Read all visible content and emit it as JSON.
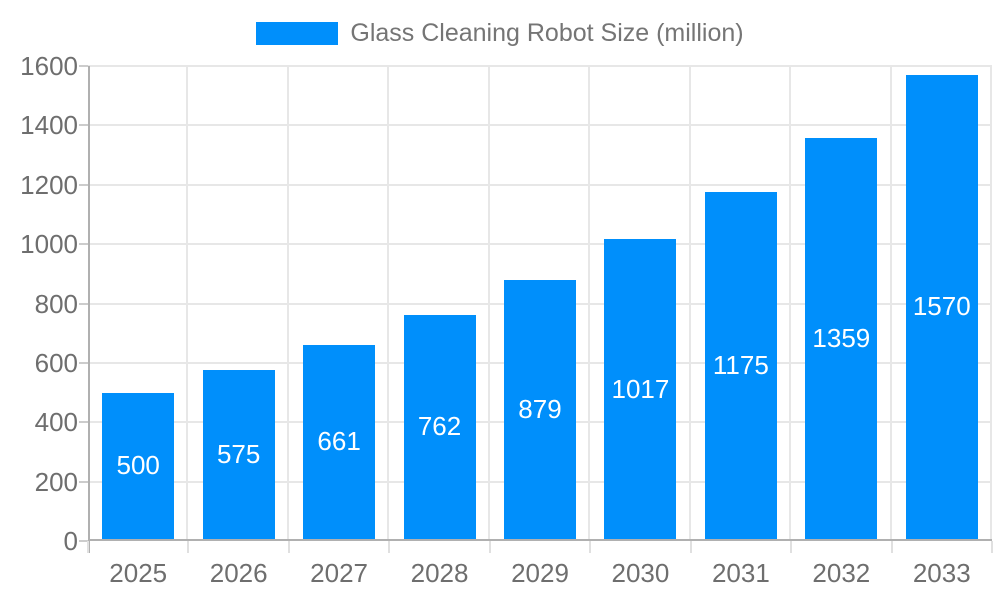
{
  "chart_data": {
    "type": "bar",
    "title": "Glass Cleaning Robot Size (million)",
    "legend_label": "Glass Cleaning Robot Size (million)",
    "legend_position": "top-center",
    "categories": [
      "2025",
      "2026",
      "2027",
      "2028",
      "2029",
      "2030",
      "2031",
      "2032",
      "2033"
    ],
    "values": [
      500,
      575,
      661,
      762,
      879,
      1017,
      1175,
      1359,
      1570
    ],
    "value_labels": [
      "500",
      "575",
      "661",
      "762",
      "879",
      "1017",
      "1175",
      "1359",
      "1570"
    ],
    "xlabel": "",
    "ylabel": "",
    "ylim": [
      0,
      1600
    ],
    "yticks": [
      0,
      200,
      400,
      600,
      800,
      1000,
      1200,
      1400,
      1600
    ],
    "grid": true,
    "colors": {
      "bar": "#008FFB",
      "value_label": "#ffffff",
      "axis_label": "#6e6e6e",
      "legend_text": "#757575",
      "gridline": "#e7e7e7",
      "axis_line": "#b0b0b0",
      "y_tick": "#cccccc",
      "x_tick": "#e0e0e0",
      "background": "#ffffff"
    }
  }
}
